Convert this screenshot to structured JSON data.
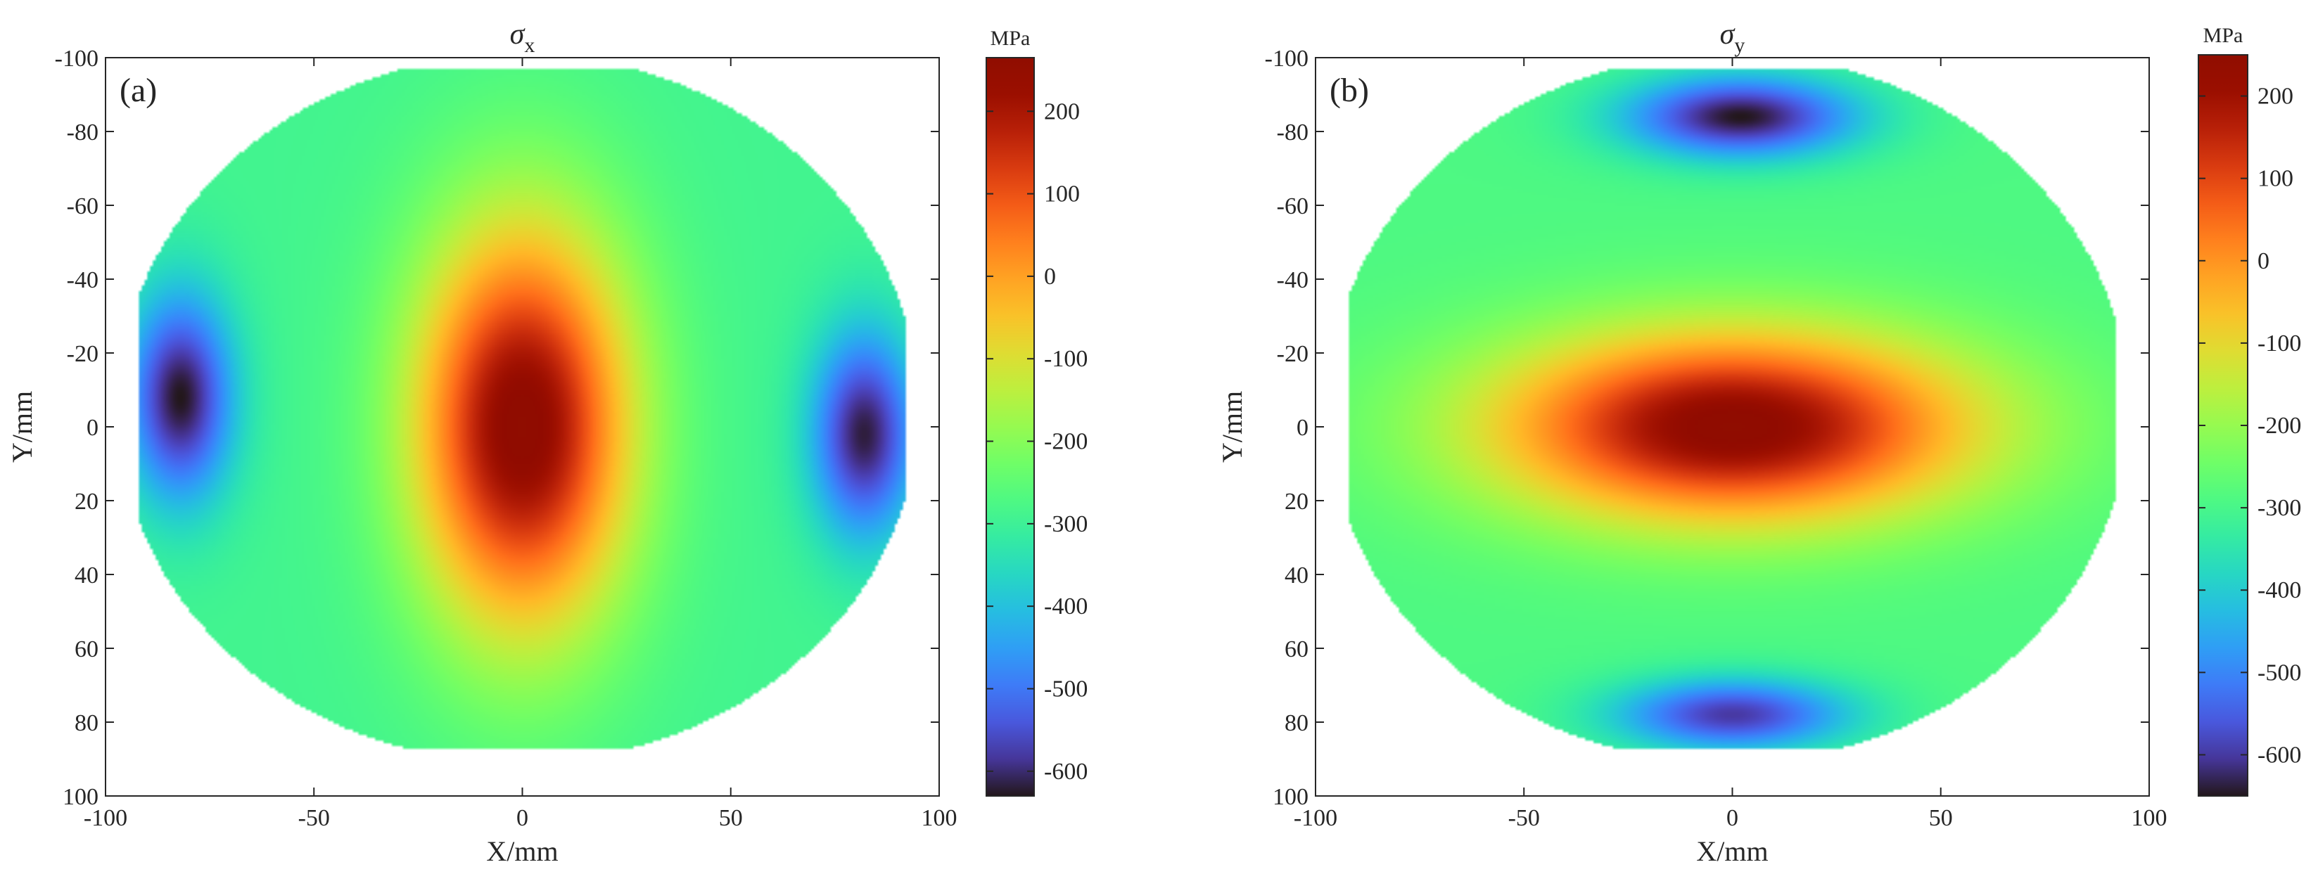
{
  "chart_data": [
    {
      "type": "heatmap",
      "panel_label": "(a)",
      "title_symbol": "σ",
      "title_subscript": "x",
      "xlabel": "X/mm",
      "ylabel": "Y/mm",
      "colorbar_label": "MPa",
      "xlim": [
        -100,
        100
      ],
      "ylim": [
        -100,
        100
      ],
      "y_reversed": true,
      "xticks": [
        -100,
        -50,
        0,
        50,
        100
      ],
      "yticks": [
        -100,
        -80,
        -60,
        -40,
        -20,
        0,
        20,
        40,
        60,
        80,
        100
      ],
      "clim": [
        -630,
        265
      ],
      "cticks": [
        200,
        100,
        0,
        -100,
        -200,
        -300,
        -400,
        -500,
        -600
      ],
      "colormap": "turbo",
      "domain_boundary": {
        "center": [
          -1,
          -5
        ],
        "radius": 96,
        "x_clip": [
          -92,
          92
        ],
        "y_clip": [
          -97,
          87
        ]
      },
      "field_features": [
        {
          "kind": "peak",
          "x": 0,
          "y": 0,
          "value": 265,
          "sx": 18,
          "sy": 38
        },
        {
          "kind": "trough",
          "x": -82,
          "y": -8,
          "value": -630,
          "sx": 9,
          "sy": 20
        },
        {
          "kind": "trough",
          "x": 82,
          "y": 2,
          "value": -620,
          "sx": 9,
          "sy": 20
        }
      ],
      "field_background": -290
    },
    {
      "type": "heatmap",
      "panel_label": "(b)",
      "title_symbol": "σ",
      "title_subscript": "y",
      "xlabel": "X/mm",
      "ylabel": "Y/mm",
      "colorbar_label": "MPa",
      "xlim": [
        -100,
        100
      ],
      "ylim": [
        -100,
        100
      ],
      "y_reversed": true,
      "xticks": [
        -100,
        -50,
        0,
        50,
        100
      ],
      "yticks": [
        -100,
        -80,
        -60,
        -40,
        -20,
        0,
        20,
        40,
        60,
        80,
        100
      ],
      "clim": [
        -650,
        250
      ],
      "cticks": [
        200,
        100,
        0,
        -100,
        -200,
        -300,
        -400,
        -500,
        -600
      ],
      "colormap": "turbo",
      "domain_boundary": {
        "center": [
          -1,
          -5
        ],
        "radius": 96,
        "x_clip": [
          -92,
          92
        ],
        "y_clip": [
          -97,
          87
        ]
      },
      "field_features": [
        {
          "kind": "peak",
          "x": 0,
          "y": 0,
          "value": 250,
          "sx": 40,
          "sy": 18
        },
        {
          "kind": "trough",
          "x": 2,
          "y": -84,
          "value": -650,
          "sx": 20,
          "sy": 8
        },
        {
          "kind": "trough",
          "x": 0,
          "y": 78,
          "value": -600,
          "sx": 20,
          "sy": 7
        }
      ],
      "field_background": -290
    }
  ]
}
